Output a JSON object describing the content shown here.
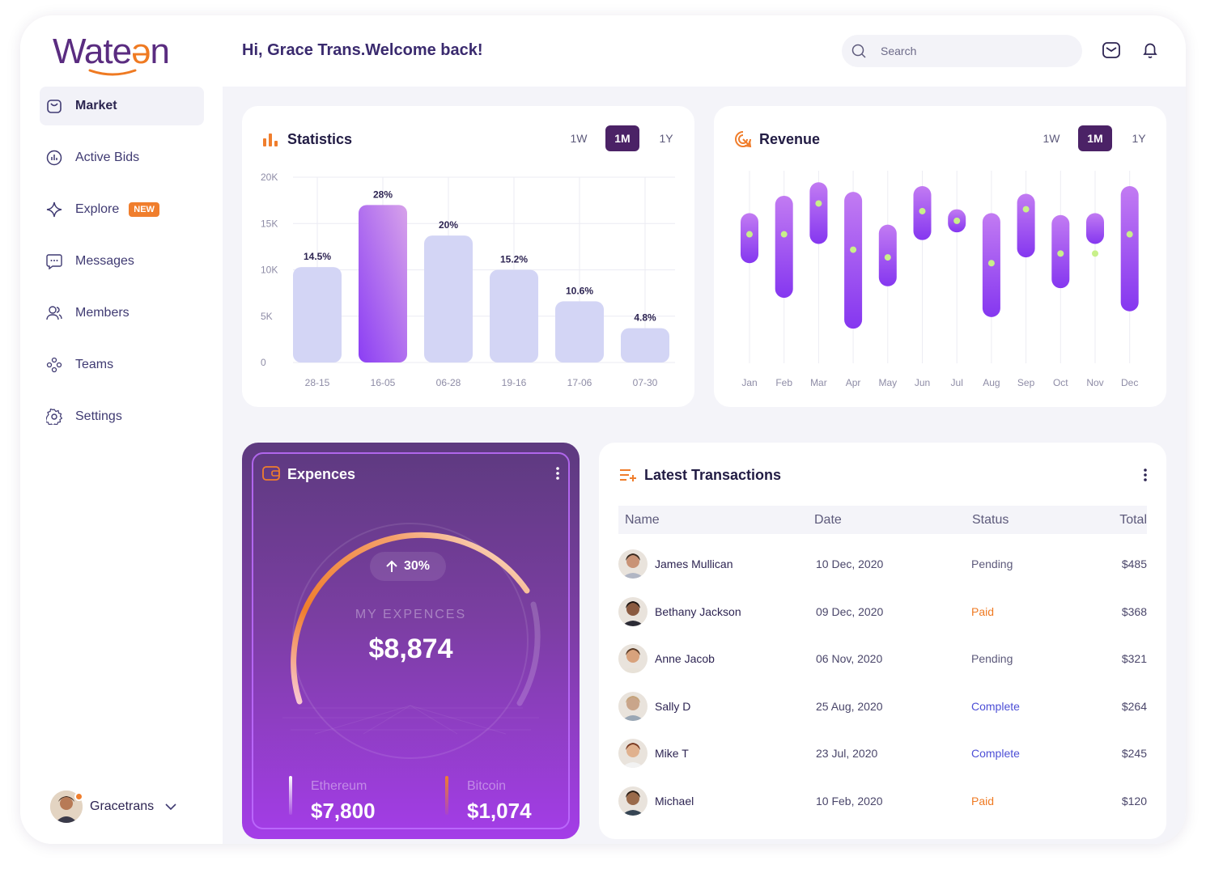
{
  "brand": {
    "logo_text_a": "Wate",
    "logo_text_b": "ǝ",
    "logo_text_c": "n"
  },
  "header": {
    "greeting": "Hi, Grace Trans.Welcome back!",
    "search_placeholder": "Search"
  },
  "sidebar": {
    "items": [
      {
        "label": "Market",
        "icon": "bag-icon"
      },
      {
        "label": "Active Bids",
        "icon": "chart-icon"
      },
      {
        "label": "Explore",
        "icon": "sparkle-icon",
        "badge": "NEW"
      },
      {
        "label": "Messages",
        "icon": "chat-icon"
      },
      {
        "label": "Members",
        "icon": "members-icon"
      },
      {
        "label": "Teams",
        "icon": "teams-icon"
      },
      {
        "label": "Settings",
        "icon": "gear-icon"
      }
    ],
    "user": {
      "name": "Gracetrans"
    }
  },
  "periods": [
    "1W",
    "1M",
    "1Y"
  ],
  "statistics": {
    "title": "Statistics",
    "chart_data": {
      "type": "bar",
      "categories": [
        "28-15",
        "16-05",
        "06-28",
        "19-16",
        "17-06",
        "07-30"
      ],
      "values": [
        10300,
        17000,
        13700,
        10000,
        6600,
        3700
      ],
      "labels": [
        "14.5%",
        "28%",
        "20%",
        "15.2%",
        "10.6%",
        "4.8%"
      ],
      "highlight": 1,
      "yticks": [
        "20K",
        "15K",
        "10K",
        "5K",
        "0"
      ],
      "ylim": [
        0,
        20000
      ]
    }
  },
  "revenue": {
    "title": "Revenue",
    "chart_data": {
      "type": "range",
      "categories": [
        "Jan",
        "Feb",
        "Mar",
        "Apr",
        "May",
        "Jun",
        "Jul",
        "Aug",
        "Sep",
        "Oct",
        "Nov",
        "Dec"
      ],
      "low": [
        52,
        34,
        62,
        18,
        40,
        64,
        68,
        24,
        55,
        39,
        62,
        27
      ],
      "high": [
        78,
        87,
        94,
        89,
        72,
        92,
        80,
        78,
        88,
        77,
        78,
        92
      ],
      "mid": [
        67,
        67,
        83,
        59,
        55,
        79,
        74,
        52,
        80,
        57,
        57,
        67
      ]
    }
  },
  "expences": {
    "title": "Expences",
    "change": "30%",
    "caption": "MY EXPENCES",
    "total": "$8,874",
    "progress_fraction": 0.6,
    "coins": [
      {
        "name": "Ethereum",
        "value": "$7,800"
      },
      {
        "name": "Bitcoin",
        "value": "$1,074"
      }
    ]
  },
  "transactions": {
    "title": "Latest Transactions",
    "columns": [
      "Name",
      "Date",
      "Status",
      "Total"
    ],
    "rows": [
      {
        "name": "James Mullican",
        "date": "10 Dec, 2020",
        "status": "Pending",
        "total": "$485"
      },
      {
        "name": "Bethany Jackson",
        "date": "09 Dec, 2020",
        "status": "Paid",
        "total": "$368"
      },
      {
        "name": "Anne Jacob",
        "date": "06 Nov, 2020",
        "status": "Pending",
        "total": "$321"
      },
      {
        "name": "Sally D",
        "date": "25 Aug, 2020",
        "status": "Complete",
        "total": "$264"
      },
      {
        "name": "Mike T",
        "date": "23 Jul, 2020",
        "status": "Complete",
        "total": "$245"
      },
      {
        "name": "Michael",
        "date": "10 Feb, 2020",
        "status": "Paid",
        "total": "$120"
      }
    ]
  },
  "colors": {
    "primary": "#4b2266",
    "accent": "#f07e2d",
    "purple": "#a146ee",
    "bar": "#d3d5f5",
    "complete": "#4d4fd6",
    "paid": "#ef7a22",
    "pending": "#5d5a7b"
  }
}
